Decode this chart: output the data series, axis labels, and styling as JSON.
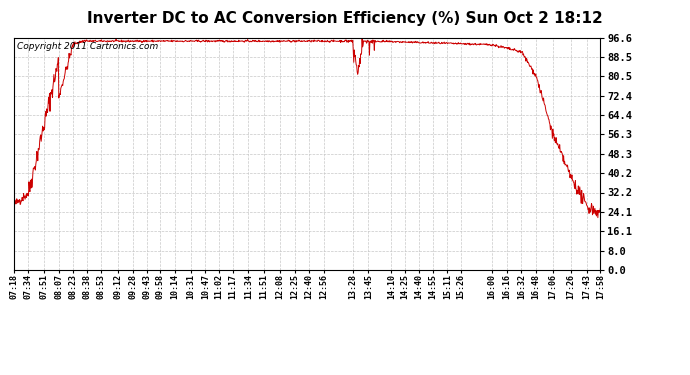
{
  "title": "Inverter DC to AC Conversion Efficiency (%) Sun Oct 2 18:12",
  "copyright": "Copyright 2011 Cartronics.com",
  "line_color": "#cc0000",
  "bg_color": "#ffffff",
  "plot_bg_color": "#ffffff",
  "grid_color": "#c8c8c8",
  "yticks": [
    0.0,
    8.0,
    16.1,
    24.1,
    32.2,
    40.2,
    48.3,
    56.3,
    64.4,
    72.4,
    80.5,
    88.5,
    96.6
  ],
  "ylim": [
    0.0,
    96.6
  ],
  "xtick_labels": [
    "07:18",
    "07:34",
    "07:51",
    "08:07",
    "08:23",
    "08:38",
    "08:53",
    "09:12",
    "09:28",
    "09:43",
    "09:58",
    "10:14",
    "10:31",
    "10:47",
    "11:02",
    "11:17",
    "11:34",
    "11:51",
    "12:08",
    "12:25",
    "12:40",
    "12:56",
    "13:28",
    "13:45",
    "14:10",
    "14:25",
    "14:40",
    "14:55",
    "15:11",
    "15:26",
    "16:00",
    "16:16",
    "16:32",
    "16:48",
    "17:06",
    "17:26",
    "17:43",
    "17:58"
  ],
  "title_fontsize": 11,
  "copyright_fontsize": 6.5,
  "tick_fontsize": 6,
  "ytick_fontsize": 7.5
}
